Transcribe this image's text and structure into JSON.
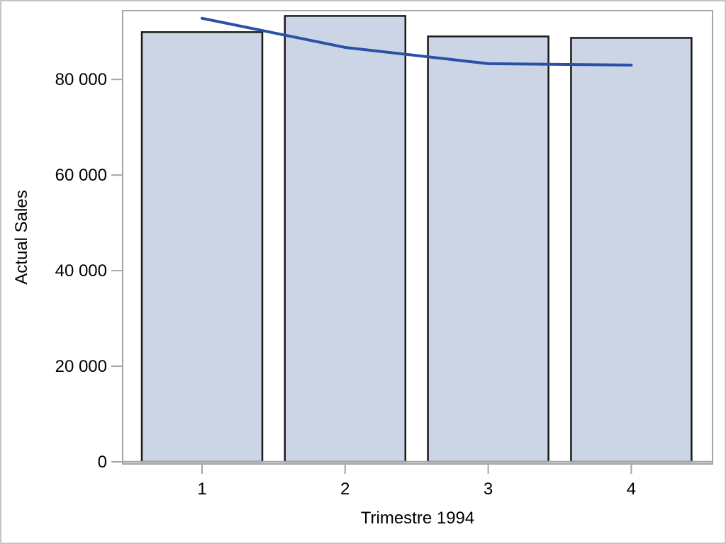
{
  "figure": {
    "background": "#ffffff",
    "border_color": "#c6c6c6"
  },
  "chart_data": {
    "type": "bar",
    "title": "",
    "categories": [
      "1",
      "2",
      "3",
      "4"
    ],
    "series": [
      {
        "name": "bars",
        "type": "bar",
        "values": [
          89900,
          93300,
          89000,
          88700
        ]
      },
      {
        "name": "overlay-line",
        "type": "line",
        "values": [
          92800,
          86700,
          83300,
          83000
        ]
      }
    ],
    "xlabel": "Trimestre 1994",
    "ylabel": "Actual Sales",
    "ylim": [
      0,
      94400
    ],
    "yticks": {
      "values": [
        0,
        20000,
        40000,
        60000,
        80000
      ],
      "labels": [
        "0",
        "20 000",
        "40 000",
        "60 000",
        "80 000"
      ]
    },
    "grid": false,
    "legend": "none",
    "colors": {
      "bar_fill": "#cbd5e6",
      "bar_stroke": "#1a1a1a",
      "line": "#2b51a7",
      "axis": "#a6a6a6",
      "tick": "#a6a6a6",
      "text": "#000000"
    }
  }
}
